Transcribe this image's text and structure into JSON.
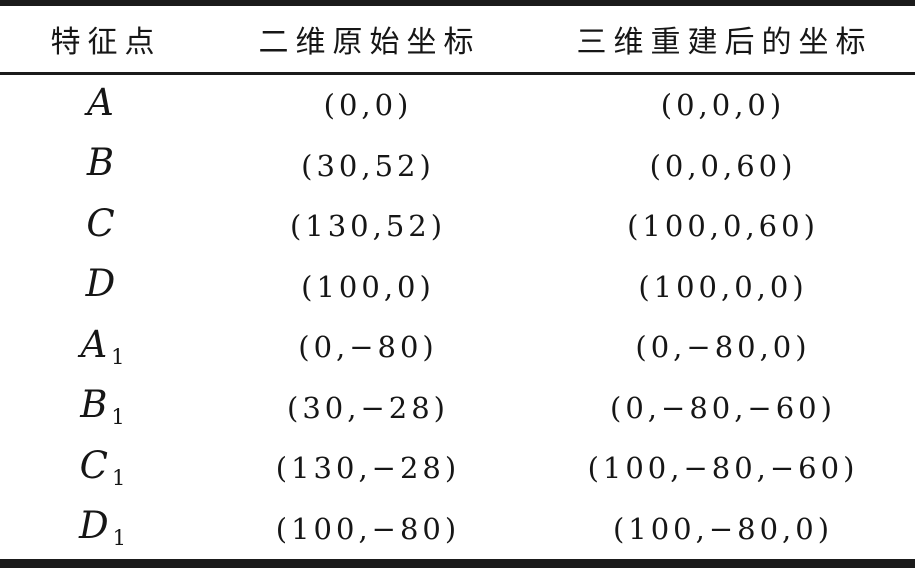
{
  "table": {
    "headers": [
      "特征点",
      "二维原始坐标",
      "三维重建后的坐标"
    ],
    "rows": [
      {
        "point": "A",
        "sub": "",
        "coord2d": "(0,0)",
        "coord3d": "(0,0,0)"
      },
      {
        "point": "B",
        "sub": "",
        "coord2d": "(30,52)",
        "coord3d": "(0,0,60)"
      },
      {
        "point": "C",
        "sub": "",
        "coord2d": "(130,52)",
        "coord3d": "(100,0,60)"
      },
      {
        "point": "D",
        "sub": "",
        "coord2d": "(100,0)",
        "coord3d": "(100,0,0)"
      },
      {
        "point": "A",
        "sub": "1",
        "coord2d": "(0,−80)",
        "coord3d": "(0,−80,0)"
      },
      {
        "point": "B",
        "sub": "1",
        "coord2d": "(30,−28)",
        "coord3d": "(0,−80,−60)"
      },
      {
        "point": "C",
        "sub": "1",
        "coord2d": "(130,−28)",
        "coord3d": "(100,−80,−60)"
      },
      {
        "point": "D",
        "sub": "1",
        "coord2d": "(100,−80)",
        "coord3d": "(100,−80,0)"
      }
    ]
  },
  "colors": {
    "rule": "#1b1b1b",
    "text": "#161616",
    "background": "#ffffff"
  },
  "chart_data": {
    "type": "table",
    "title": "",
    "columns": [
      "特征点",
      "二维原始坐标",
      "三维重建后的坐标"
    ],
    "rows": [
      [
        "A",
        "(0,0)",
        "(0,0,0)"
      ],
      [
        "B",
        "(30,52)",
        "(0,0,60)"
      ],
      [
        "C",
        "(130,52)",
        "(100,0,60)"
      ],
      [
        "D",
        "(100,0)",
        "(100,0,0)"
      ],
      [
        "A1",
        "(0,−80)",
        "(0,−80,0)"
      ],
      [
        "B1",
        "(30,−28)",
        "(0,−80,−60)"
      ],
      [
        "C1",
        "(130,−28)",
        "(100,−80,−60)"
      ],
      [
        "D1",
        "(100,−80)",
        "(100,−80,0)"
      ]
    ]
  }
}
